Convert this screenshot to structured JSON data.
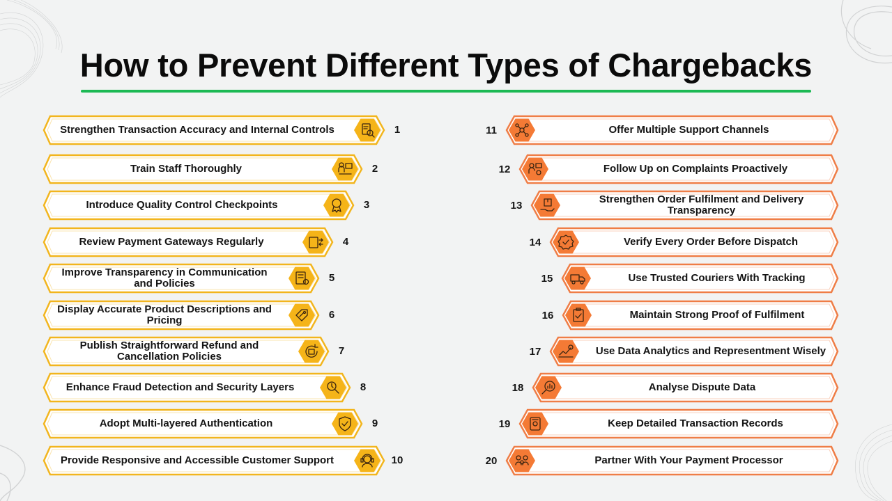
{
  "title": "How to Prevent Different Types of Chargebacks",
  "colors": {
    "accent_green": "#1db954",
    "left_frame": "#f2b51d",
    "left_icon": "#f5b419",
    "right_frame": "#ef7d46",
    "right_icon": "#f47a35",
    "text": "#141414"
  },
  "left_items": [
    {
      "num": "1",
      "label": "Strengthen Transaction Accuracy and Internal Controls",
      "icon": "document-search-icon"
    },
    {
      "num": "2",
      "label": "Train Staff Thoroughly",
      "icon": "staff-training-icon"
    },
    {
      "num": "3",
      "label": "Introduce Quality Control Checkpoints",
      "icon": "quality-badge-icon"
    },
    {
      "num": "4",
      "label": "Review Payment Gateways Regularly",
      "icon": "payment-gateway-icon"
    },
    {
      "num": "5",
      "label": "Improve Transparency in Communication and Policies",
      "icon": "policy-document-icon"
    },
    {
      "num": "6",
      "label": "Display Accurate Product Descriptions and Pricing",
      "icon": "price-tag-icon"
    },
    {
      "num": "7",
      "label": "Publish Straightforward Refund and Cancellation Policies",
      "icon": "refund-cycle-icon"
    },
    {
      "num": "8",
      "label": "Enhance Fraud Detection and Security Layers",
      "icon": "fraud-detection-icon"
    },
    {
      "num": "9",
      "label": "Adopt Multi-layered Authentication",
      "icon": "shield-check-icon"
    },
    {
      "num": "10",
      "label": "Provide Responsive and Accessible Customer Support",
      "icon": "headset-support-icon"
    }
  ],
  "right_items": [
    {
      "num": "11",
      "label": "Offer Multiple Support Channels",
      "icon": "network-channels-icon"
    },
    {
      "num": "12",
      "label": "Follow Up on Complaints Proactively",
      "icon": "complaint-followup-icon"
    },
    {
      "num": "13",
      "label": "Strengthen Order Fulfilment and Delivery Transparency",
      "icon": "package-hand-icon"
    },
    {
      "num": "14",
      "label": "Verify Every Order Before Dispatch",
      "icon": "verified-badge-icon"
    },
    {
      "num": "15",
      "label": "Use Trusted Couriers With Tracking",
      "icon": "delivery-truck-icon"
    },
    {
      "num": "16",
      "label": "Maintain Strong Proof of Fulfilment",
      "icon": "clipboard-proof-icon"
    },
    {
      "num": "17",
      "label": "Use Data Analytics and Representment Wisely",
      "icon": "analytics-chart-icon"
    },
    {
      "num": "18",
      "label": "Analyse Dispute Data",
      "icon": "magnifier-chart-icon"
    },
    {
      "num": "19",
      "label": "Keep Detailed Transaction Records",
      "icon": "records-file-icon"
    },
    {
      "num": "20",
      "label": "Partner With Your Payment Processor",
      "icon": "partner-payment-icon"
    }
  ]
}
